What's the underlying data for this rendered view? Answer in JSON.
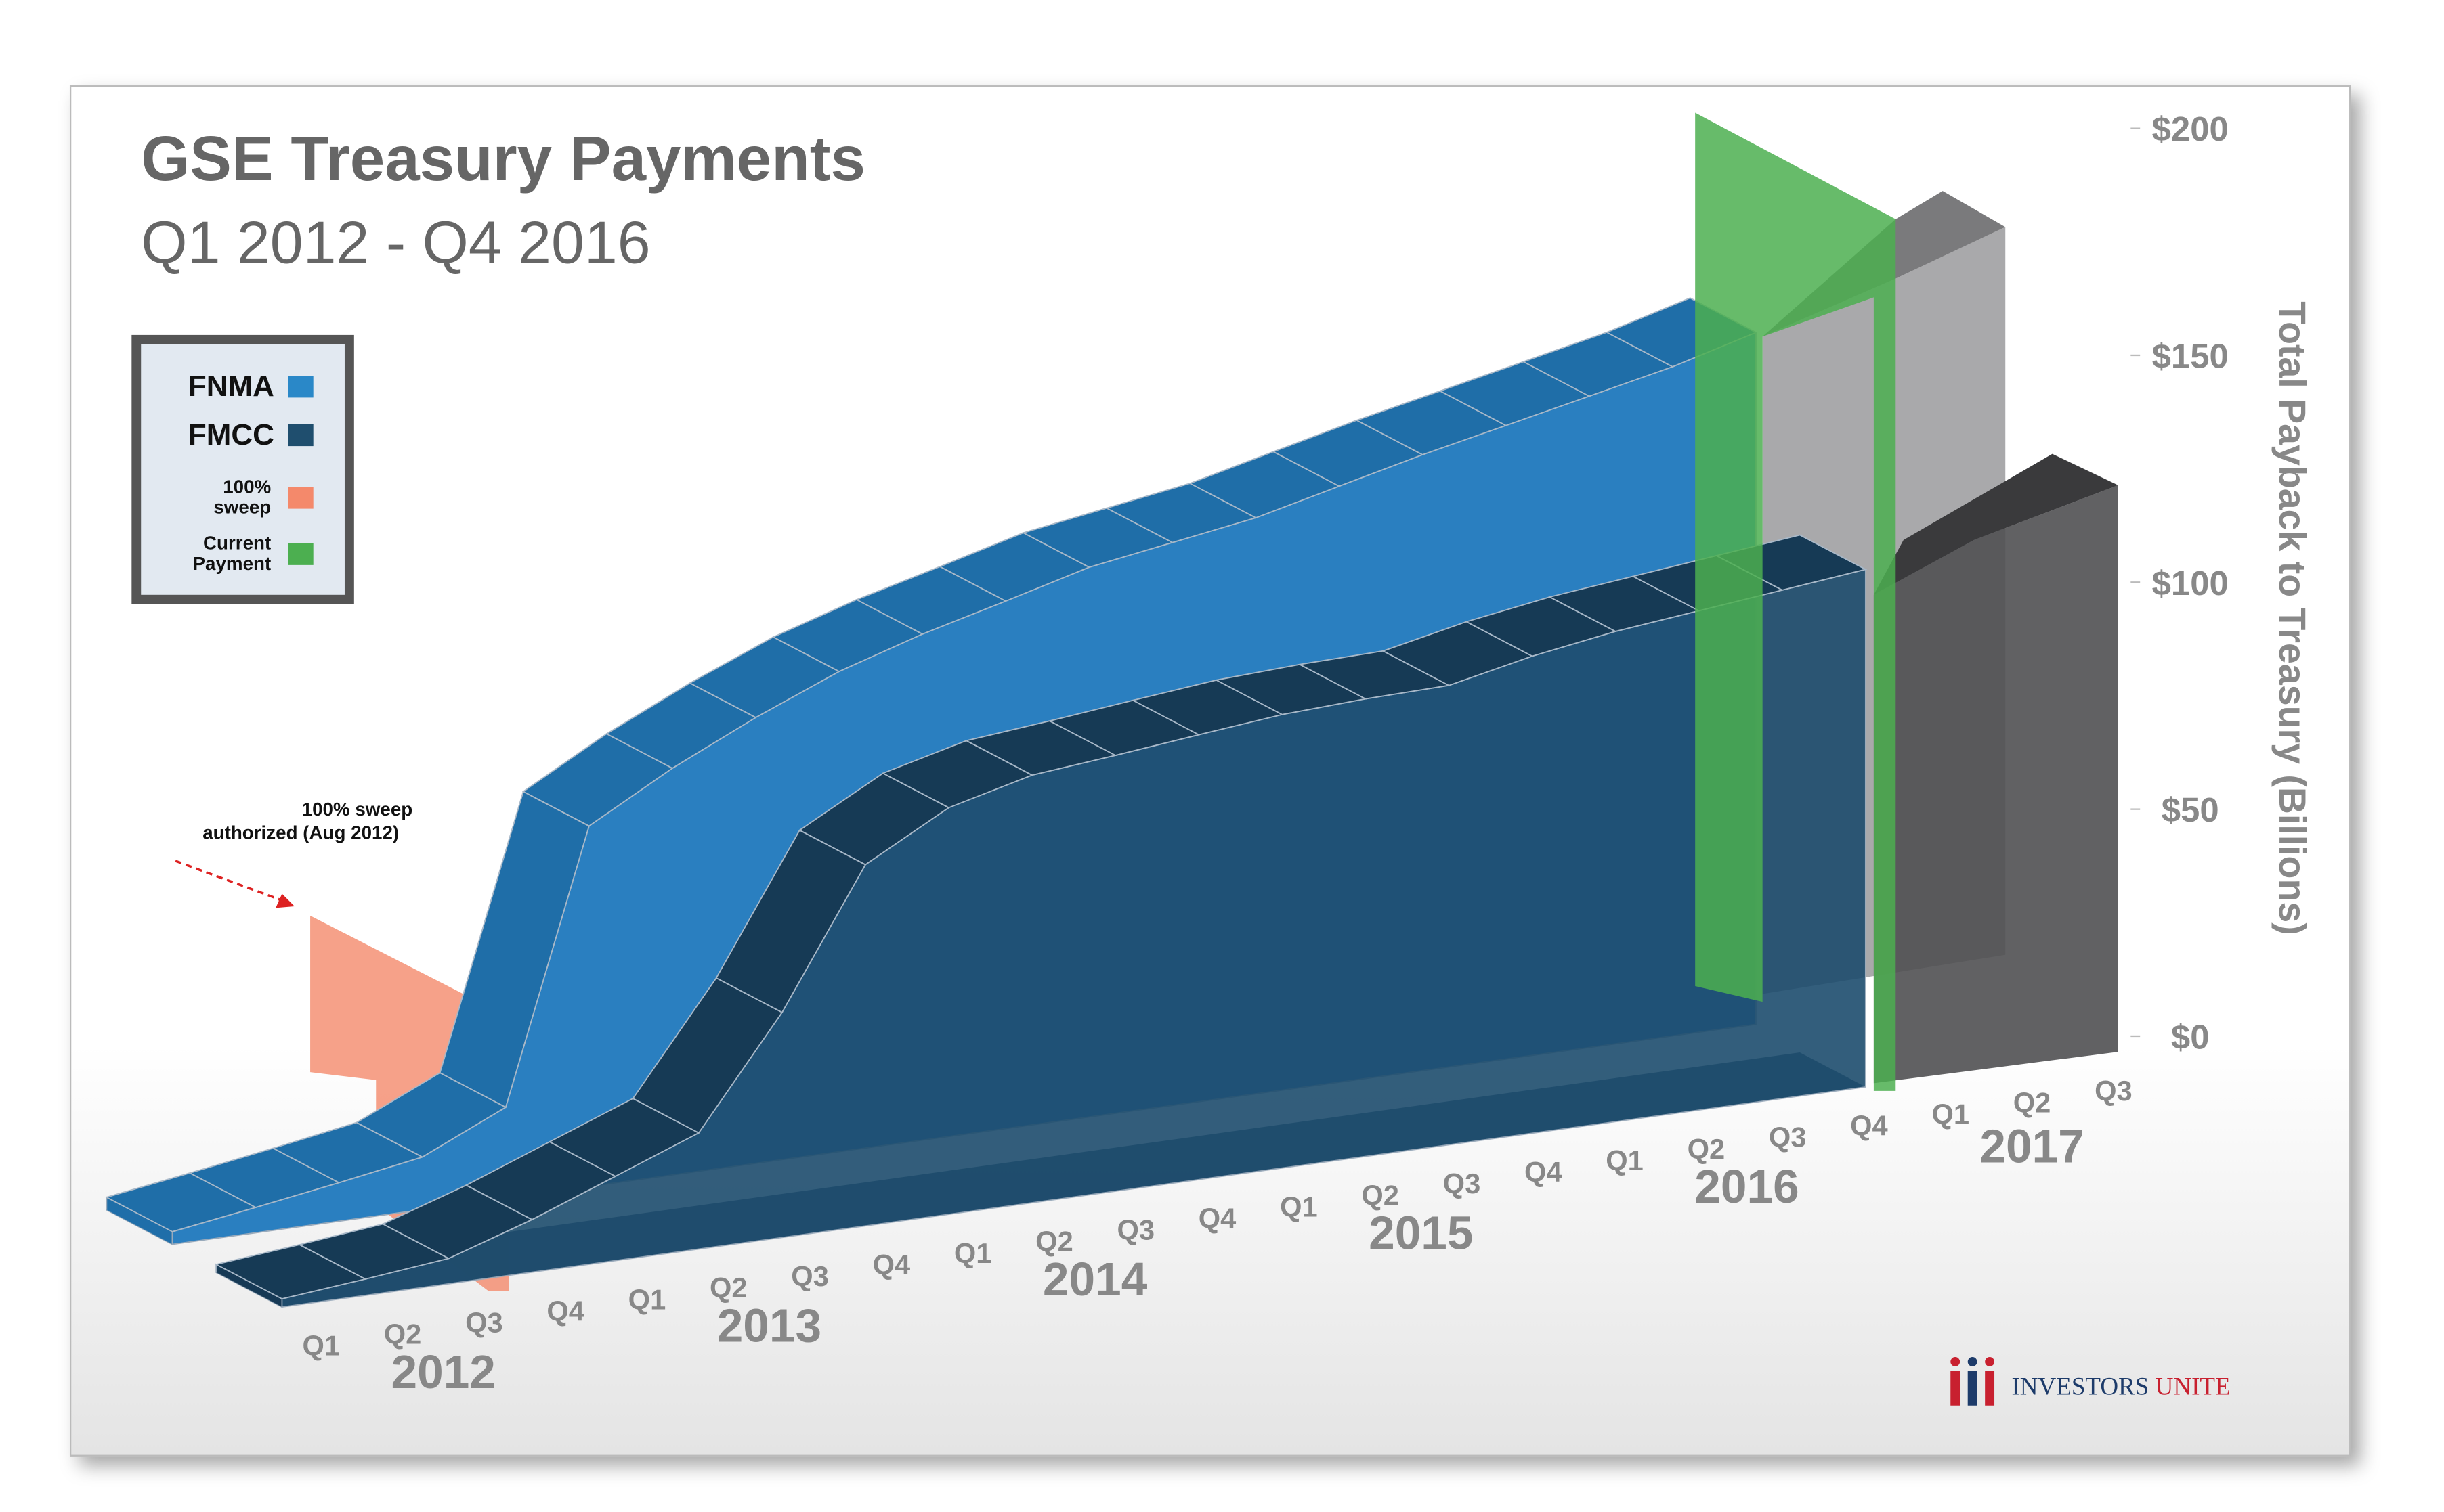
{
  "chart_data": {
    "type": "area3d",
    "title": "GSE Treasury Payments",
    "subtitle": "Q1 2012 - Q4 2016",
    "y_label": "Total Payback to Treasury (Billions)",
    "categories": [
      "Q1",
      "Q2",
      "Q3",
      "Q4",
      "Q1",
      "Q2",
      "Q3",
      "Q4",
      "Q1",
      "Q2",
      "Q3",
      "Q4",
      "Q1",
      "Q2",
      "Q3",
      "Q4",
      "Q1",
      "Q2",
      "Q3",
      "Q4",
      "Q1",
      "Q2",
      "Q3"
    ],
    "years": [
      "2012",
      "2013",
      "2014",
      "2015",
      "2016",
      "2017"
    ],
    "series": [
      {
        "name": "FNMA",
        "color": "#2a88c8",
        "values": [
          2.8,
          5.6,
          8.5,
          11.6,
          20.0,
          79.4,
          89.6,
          98.2,
          105.8,
          111.5,
          116.2,
          121.1,
          124.0,
          126.9,
          131.3,
          135.7,
          139.6,
          143.5,
          147.4,
          152.4,
          null,
          null,
          null
        ]
      },
      {
        "name": "FMCC",
        "color": "#1f4e6e",
        "values": [
          1.8,
          3.6,
          5.6,
          11.6,
          18.6,
          25.6,
          49.6,
          79.6,
          89.6,
          94.2,
          96.0,
          98.0,
          99.9,
          100.8,
          101.2,
          105.1,
          108.0,
          110.0,
          112.0,
          114.0,
          null,
          null,
          null
        ]
      }
    ],
    "overlays": [
      {
        "name": [
          "100%",
          "sweep"
        ],
        "color": "#f4896b"
      },
      {
        "name": [
          "Current",
          "Payment"
        ],
        "color": "#4caf50"
      }
    ],
    "annotation": [
      "100% sweep",
      "authorized (Aug 2012)"
    ],
    "ylim": [
      0,
      200
    ],
    "yticks": [
      {
        "value": 0,
        "label": "$0"
      },
      {
        "value": 50,
        "label": "$50"
      },
      {
        "value": 100,
        "label": "$100"
      },
      {
        "value": 150,
        "label": "$150"
      },
      {
        "value": 200,
        "label": "$200"
      }
    ],
    "logo": [
      "INVESTORS",
      "UNITE"
    ]
  }
}
